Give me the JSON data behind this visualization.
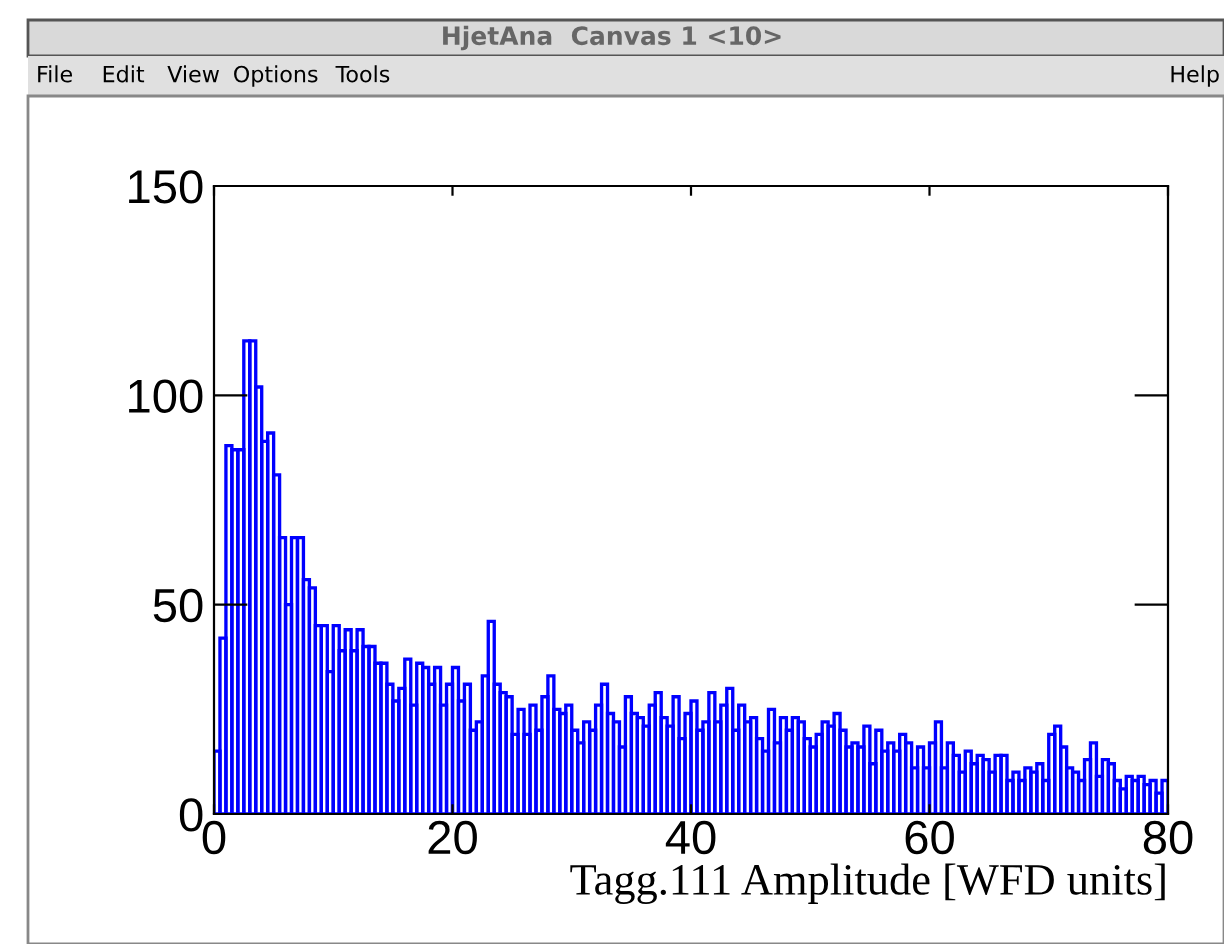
{
  "chart_data": {
    "type": "histogram",
    "xlabel": "Tagg.111 Amplitude [WFD units]",
    "annotations": [
      "HjetAna  Canvas 1 <10>",
      "File",
      "Edit",
      "View",
      "Options",
      "Tools",
      "Help"
    ],
    "color": "#0000ff",
    "bins": [
      0,
      0.5,
      1,
      1.5,
      2,
      2.5,
      3,
      3.5,
      4,
      4.5,
      5,
      5.5,
      6,
      6.5,
      7,
      7.5,
      8,
      8.5,
      9,
      9.5,
      10,
      10.5,
      11,
      11.5,
      12,
      12.5,
      13,
      13.5,
      14,
      14.5,
      15,
      15.5,
      16,
      16.5,
      17,
      17.5,
      18,
      18.5,
      19,
      19.5,
      20,
      20.5,
      21,
      21.5,
      22,
      22.5,
      23,
      23.5,
      24,
      24.5,
      25,
      25.5,
      26,
      26.5,
      27,
      27.5,
      28,
      28.5,
      29,
      29.5,
      30,
      30.5,
      31,
      31.5,
      32,
      32.5,
      33,
      33.5,
      34,
      34.5,
      35,
      35.5,
      36,
      36.5,
      37,
      37.5,
      38,
      38.5,
      39,
      39.5,
      40,
      40.5,
      41,
      41.5,
      42,
      42.5,
      43,
      43.5,
      44,
      44.5,
      45,
      45.5,
      46,
      46.5,
      47,
      47.5,
      48,
      48.5,
      49,
      49.5,
      50,
      50.5,
      51,
      51.5,
      52,
      52.5,
      53,
      53.5,
      54,
      54.5,
      55,
      55.5,
      56,
      56.5,
      57,
      57.5,
      58,
      58.5,
      59,
      59.5,
      60,
      60.5,
      61,
      61.5,
      62,
      62.5,
      63,
      63.5,
      64,
      64.5,
      65,
      65.5,
      66,
      66.5,
      67,
      67.5,
      68,
      68.5,
      69,
      69.5,
      70,
      70.5,
      71,
      71.5,
      72,
      72.5,
      73,
      73.5,
      74,
      74.5,
      75,
      75.5,
      76,
      76.5,
      77,
      77.5,
      78,
      78.5,
      79,
      79.5,
      80
    ],
    "values": [
      15,
      42,
      88,
      87,
      87,
      113,
      113,
      102,
      89,
      91,
      81,
      66,
      50,
      66,
      66,
      56,
      54,
      45,
      45,
      34,
      45,
      39,
      44,
      39,
      44,
      40,
      40,
      36,
      36,
      31,
      27,
      30,
      37,
      26,
      36,
      35,
      31,
      35,
      26,
      31,
      35,
      27,
      31,
      20,
      22,
      33,
      46,
      31,
      29,
      28,
      19,
      25,
      19,
      26,
      20,
      28,
      33,
      25,
      24,
      26,
      20,
      17,
      22,
      20,
      26,
      31,
      24,
      22,
      16,
      28,
      24,
      23,
      21,
      26,
      29,
      23,
      21,
      28,
      18,
      24,
      27,
      20,
      22,
      29,
      22,
      26,
      30,
      20,
      26,
      22,
      23,
      18,
      15,
      25,
      17,
      23,
      20,
      23,
      22,
      18,
      16,
      19,
      22,
      21,
      24,
      20,
      16,
      17,
      16,
      21,
      12,
      20,
      15,
      17,
      15,
      19,
      17,
      11,
      16,
      11,
      17,
      22,
      11,
      17,
      14,
      10,
      15,
      12,
      14,
      13,
      10,
      14,
      14,
      8,
      10,
      8,
      11,
      10,
      12,
      8,
      19,
      21,
      16,
      11,
      10,
      8,
      13,
      17,
      9,
      13,
      12,
      8,
      6,
      9,
      8,
      9,
      7,
      8,
      5,
      8
    ],
    "xlim": [
      0,
      80
    ],
    "ylim": [
      0,
      150
    ],
    "xticks": [
      0,
      20,
      40,
      60,
      80
    ],
    "yticks": [
      0,
      50,
      100,
      150
    ],
    "grid": false,
    "legend": false
  }
}
